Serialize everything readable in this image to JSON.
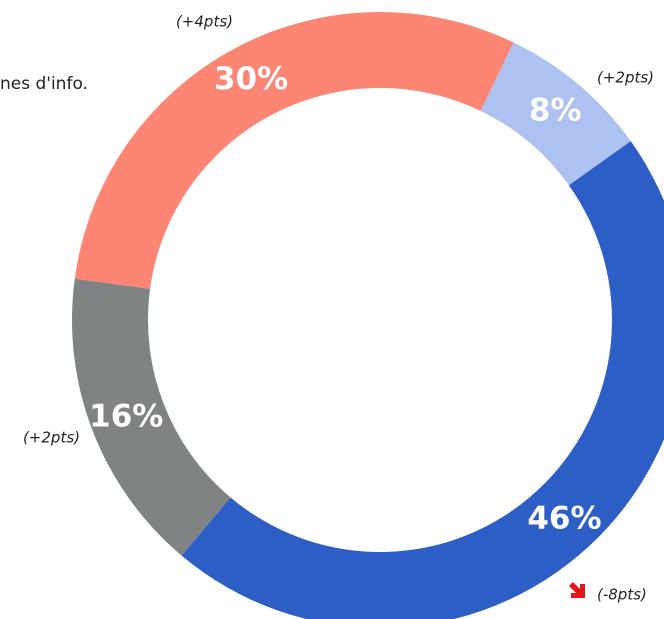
{
  "chart_data": {
    "type": "donut",
    "note": "nes d'info.",
    "categories": [
      null,
      null,
      null,
      null
    ],
    "values": [
      8,
      46,
      16,
      30
    ],
    "value_labels": [
      "8%",
      "46%",
      "16%",
      "30%"
    ],
    "changes": [
      "(+2pts)",
      "(-8pts)",
      "(+2pts)",
      "(+4pts)"
    ],
    "colors": [
      "#adc2f0",
      "#2c5ec6",
      "#7f8383",
      "#fd8574"
    ]
  }
}
